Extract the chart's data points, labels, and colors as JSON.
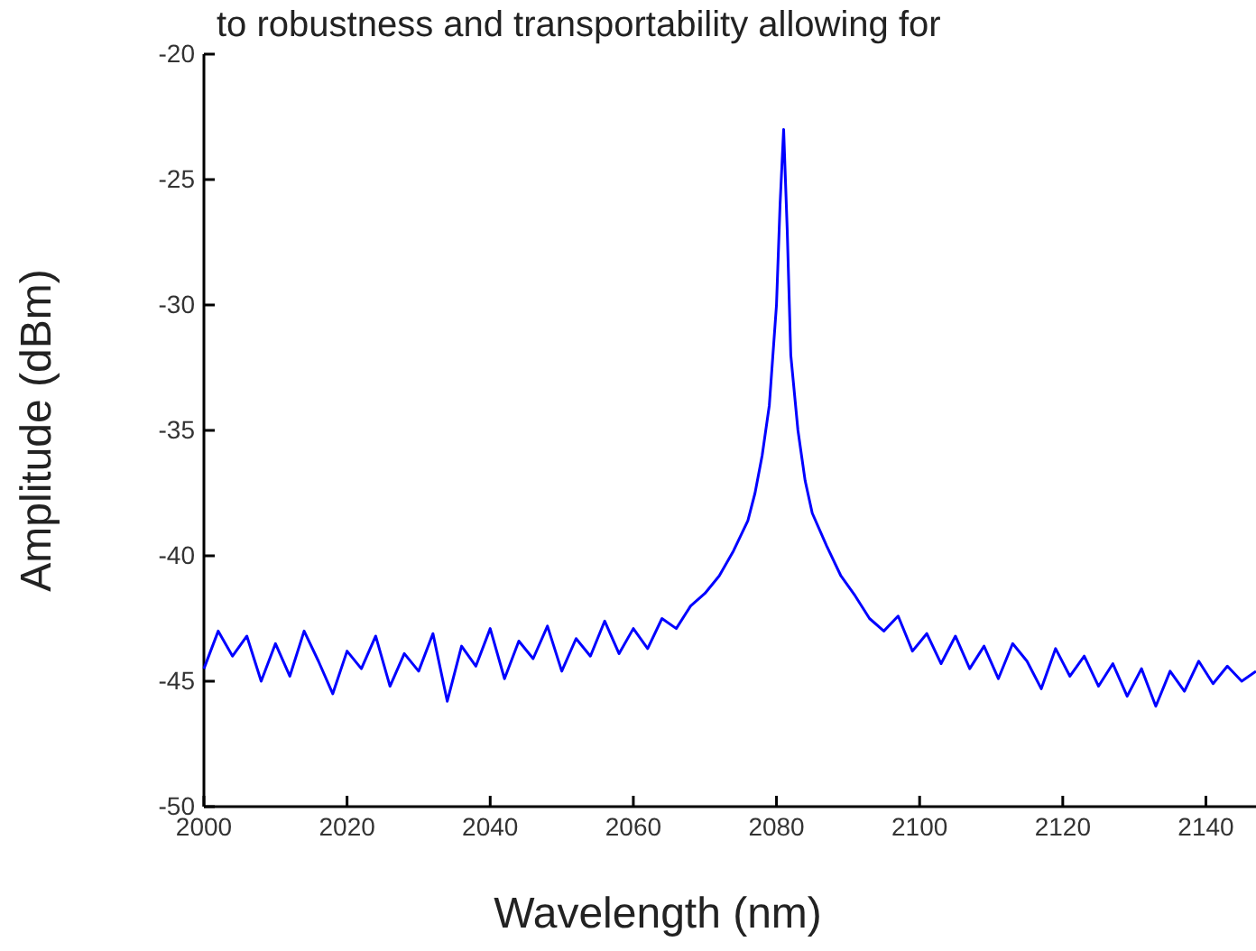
{
  "chart_data": {
    "type": "line",
    "xlabel": "Wavelength (nm)",
    "ylabel": "Amplitude (dBm)",
    "annotations": [
      "to robustness and transportability allowing for"
    ],
    "xlim": [
      2000,
      2147
    ],
    "ylim": [
      -50,
      -20
    ],
    "xticks": [
      2000,
      2020,
      2040,
      2060,
      2080,
      2100,
      2120,
      2140
    ],
    "yticks": [
      -50,
      -45,
      -40,
      -35,
      -30,
      -25,
      -20
    ],
    "grid": false,
    "series": [
      {
        "color": "#0000ff",
        "x": [
          2000,
          2002,
          2004,
          2006,
          2008,
          2010,
          2012,
          2014,
          2016,
          2018,
          2020,
          2022,
          2024,
          2026,
          2028,
          2030,
          2032,
          2034,
          2036,
          2038,
          2040,
          2042,
          2044,
          2046,
          2048,
          2050,
          2052,
          2054,
          2056,
          2058,
          2060,
          2062,
          2064,
          2066,
          2068,
          2070,
          2072,
          2074,
          2076,
          2077,
          2078,
          2079,
          2080,
          2080.5,
          2081,
          2081.5,
          2082,
          2083,
          2084,
          2085,
          2087,
          2089,
          2091,
          2093,
          2095,
          2097,
          2099,
          2101,
          2103,
          2105,
          2107,
          2109,
          2111,
          2113,
          2115,
          2117,
          2119,
          2121,
          2123,
          2125,
          2127,
          2129,
          2131,
          2133,
          2135,
          2137,
          2139,
          2141,
          2143,
          2145,
          2147
        ],
        "values": [
          -44.5,
          -43,
          -44,
          -43.2,
          -45,
          -43.5,
          -44.8,
          -43,
          -44.2,
          -45.5,
          -43.8,
          -44.5,
          -43.2,
          -45.2,
          -43.9,
          -44.6,
          -43.1,
          -45.8,
          -43.6,
          -44.4,
          -42.9,
          -44.9,
          -43.4,
          -44.1,
          -42.8,
          -44.6,
          -43.3,
          -44,
          -42.6,
          -43.9,
          -42.9,
          -43.7,
          -42.5,
          -42.9,
          -42,
          -41.5,
          -40.8,
          -39.8,
          -38.6,
          -37.5,
          -36,
          -34,
          -30,
          -26,
          -23,
          -27,
          -32,
          -35,
          -37,
          -38.3,
          -39.6,
          -40.8,
          -41.6,
          -42.5,
          -43,
          -42.4,
          -43.8,
          -43.1,
          -44.3,
          -43.2,
          -44.5,
          -43.6,
          -44.9,
          -43.5,
          -44.2,
          -45.3,
          -43.7,
          -44.8,
          -44,
          -45.2,
          -44.3,
          -45.6,
          -44.5,
          -46,
          -44.6,
          -45.4,
          -44.2,
          -45.1,
          -44.4,
          -45,
          -44.6
        ]
      }
    ]
  }
}
